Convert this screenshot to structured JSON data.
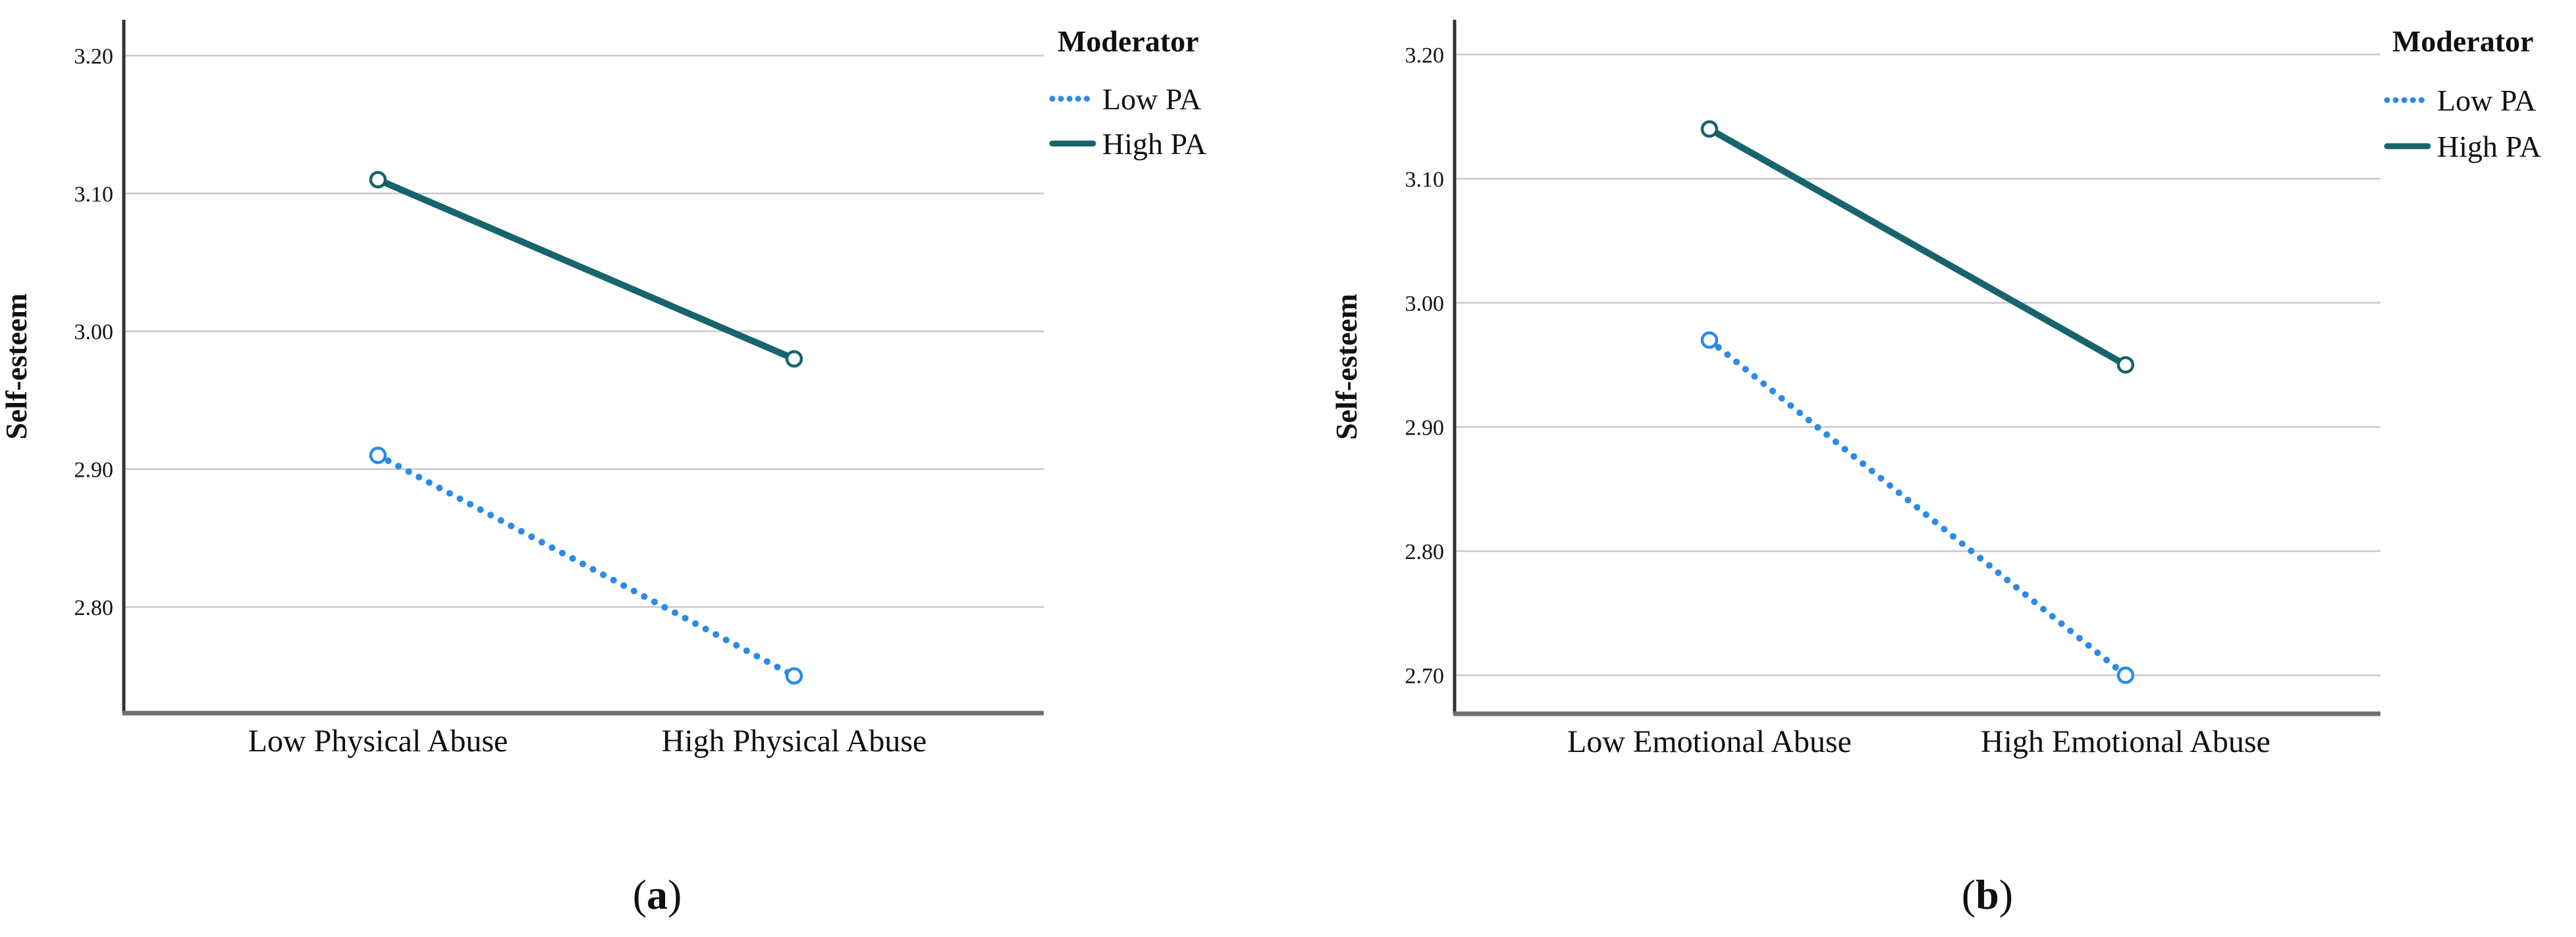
{
  "figure": {
    "captions": [
      {
        "open": "(",
        "letter": "a",
        "close": ")"
      },
      {
        "open": "(",
        "letter": "b",
        "close": ")"
      }
    ]
  },
  "colors": {
    "low_pa": "#2B8BE8",
    "high_pa": "#18646C",
    "gridline": "#C8C8C8",
    "y_axis": "#333333",
    "x_axis": "#707070",
    "text": "#111111"
  },
  "chart_data": [
    {
      "type": "line",
      "title": "",
      "ylabel": "Self-esteem",
      "xlabel": "",
      "categories": [
        "Low Physical Abuse",
        "High Physical Abuse"
      ],
      "yticks": [
        "3.20",
        "3.10",
        "3.00",
        "2.90",
        "2.80"
      ],
      "ylim": [
        2.723,
        3.226
      ],
      "grid": "horizontal",
      "legend": {
        "title": "Moderator",
        "position": "right",
        "items": [
          {
            "label": "Low PA",
            "style": "dotted"
          },
          {
            "label": "High PA",
            "style": "solid"
          }
        ]
      },
      "series": [
        {
          "name": "Low PA",
          "style": "dotted",
          "color": "#2B8BE8",
          "values": [
            2.91,
            2.75
          ]
        },
        {
          "name": "High PA",
          "style": "solid",
          "color": "#18646C",
          "values": [
            3.11,
            2.98
          ]
        }
      ],
      "caption": "(a)"
    },
    {
      "type": "line",
      "title": "",
      "ylabel": "Self-esteem",
      "xlabel": "",
      "categories": [
        "Low Emotional Abuse",
        "High Emotional Abuse"
      ],
      "yticks": [
        "3.20",
        "3.10",
        "3.00",
        "2.90",
        "2.80",
        "2.70"
      ],
      "ylim": [
        2.669,
        3.228
      ],
      "grid": "horizontal",
      "legend": {
        "title": "Moderator",
        "position": "right",
        "items": [
          {
            "label": "Low PA",
            "style": "dotted"
          },
          {
            "label": "High PA",
            "style": "solid"
          }
        ]
      },
      "series": [
        {
          "name": "Low PA",
          "style": "dotted",
          "color": "#2B8BE8",
          "values": [
            2.97,
            2.7
          ]
        },
        {
          "name": "High PA",
          "style": "solid",
          "color": "#18646C",
          "values": [
            3.14,
            2.95
          ]
        }
      ],
      "caption": "(b)"
    }
  ]
}
